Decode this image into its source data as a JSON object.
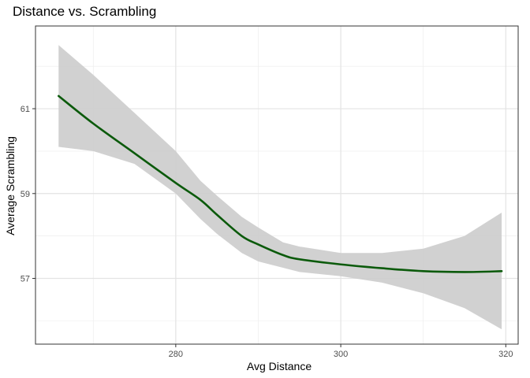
{
  "chart_data": {
    "type": "line",
    "title": "Distance vs. Scrambling",
    "xlabel": "Avg Distance",
    "ylabel": "Average Scrambling",
    "xlim": [
      263.0,
      321.5
    ],
    "ylim": [
      55.45,
      62.95
    ],
    "x_ticks": [
      280,
      300,
      320
    ],
    "x_tick_labels": [
      "280",
      "300",
      "320"
    ],
    "y_ticks": [
      57,
      59,
      61
    ],
    "y_tick_labels": [
      "57",
      "59",
      "61"
    ],
    "x_minor_ticks": [
      270,
      290,
      310
    ],
    "y_minor_ticks": [
      56,
      58,
      60,
      62
    ],
    "grid": true,
    "legend": "none",
    "series": [
      {
        "color": "#0b5a0b",
        "x": [
          265.8,
          270,
          275,
          280,
          283,
          285,
          288,
          290,
          293,
          295,
          300,
          305,
          310,
          315,
          319.5
        ],
        "y": [
          61.3,
          60.65,
          59.95,
          59.25,
          58.85,
          58.5,
          58.0,
          57.8,
          57.55,
          57.45,
          57.33,
          57.24,
          57.17,
          57.15,
          57.17
        ],
        "lower": [
          60.1,
          60.0,
          59.7,
          59.0,
          58.4,
          58.05,
          57.6,
          57.4,
          57.25,
          57.15,
          57.05,
          56.9,
          56.65,
          56.3,
          55.8
        ],
        "upper": [
          62.5,
          61.8,
          60.9,
          60.0,
          59.3,
          58.95,
          58.45,
          58.2,
          57.85,
          57.75,
          57.6,
          57.6,
          57.7,
          58.0,
          58.55
        ],
        "band_color": "#cccccc"
      }
    ]
  }
}
